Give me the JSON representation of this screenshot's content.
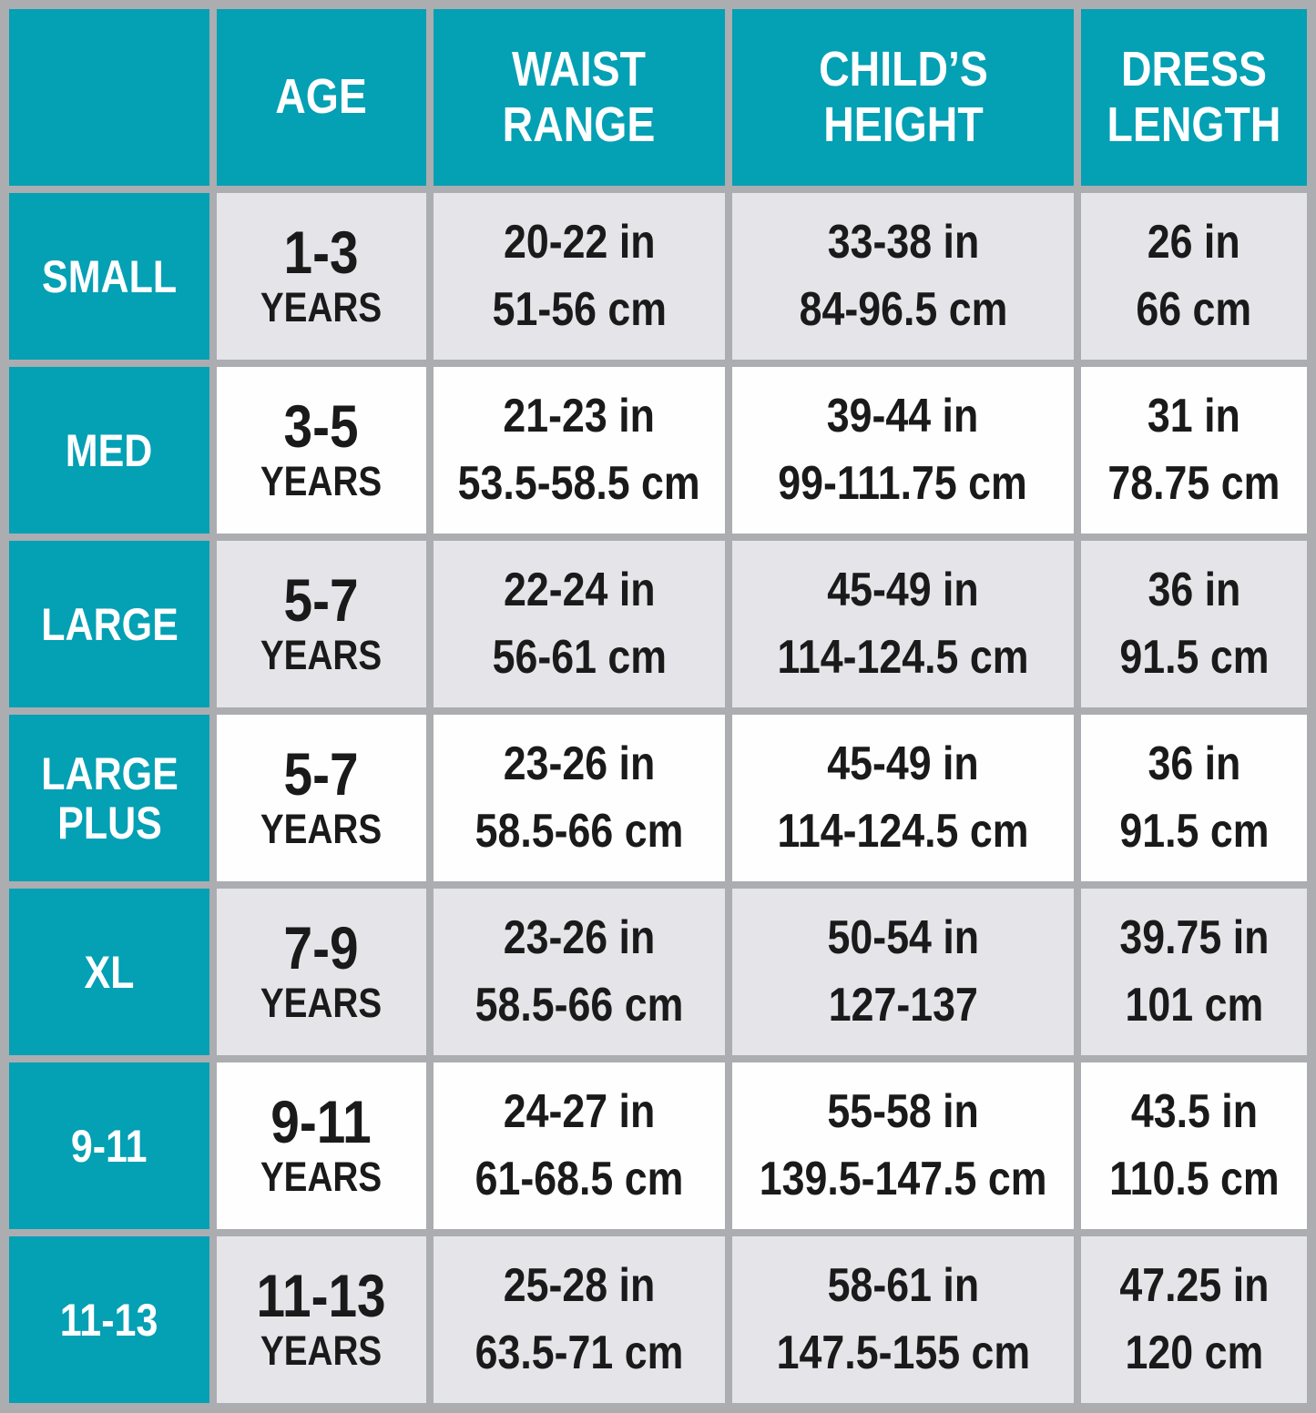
{
  "colors": {
    "teal": "#04A0B4",
    "grid_gray": "#ABADB0",
    "row_gray": "#E4E4E9",
    "row_white": "#FEFEFE",
    "text_dark": "#1A1A1A",
    "text_light": "#FFFFFF"
  },
  "table": {
    "header": {
      "corner": "",
      "age": "AGE",
      "waist": "WAIST\nRANGE",
      "height": "CHILD’S\nHEIGHT",
      "dress": "DRESS\nLENGTH"
    },
    "rows": [
      {
        "label": "SMALL",
        "age": "1-3",
        "age_unit": "YEARS",
        "waist": "20-22 in\n51-56 cm",
        "height": "33-38 in\n84-96.5 cm",
        "dress": "26 in\n66 cm"
      },
      {
        "label": "MED",
        "age": "3-5",
        "age_unit": "YEARS",
        "waist": "21-23 in\n53.5-58.5 cm",
        "height": "39-44 in\n99-111.75 cm",
        "dress": "31 in\n78.75 cm"
      },
      {
        "label": "LARGE",
        "age": "5-7",
        "age_unit": "YEARS",
        "waist": "22-24 in\n56-61 cm",
        "height": "45-49 in\n114-124.5 cm",
        "dress": "36 in\n91.5 cm"
      },
      {
        "label": "LARGE\nPLUS",
        "age": "5-7",
        "age_unit": "YEARS",
        "waist": "23-26 in\n58.5-66 cm",
        "height": "45-49 in\n114-124.5 cm",
        "dress": "36 in\n91.5 cm"
      },
      {
        "label": "XL",
        "age": "7-9",
        "age_unit": "YEARS",
        "waist": "23-26 in\n58.5-66 cm",
        "height": "50-54 in\n127-137",
        "dress": "39.75 in\n101 cm"
      },
      {
        "label": "9-11",
        "age": "9-11",
        "age_unit": "YEARS",
        "waist": "24-27 in\n61-68.5 cm",
        "height": "55-58 in\n139.5-147.5 cm",
        "dress": "43.5 in\n110.5 cm"
      },
      {
        "label": "11-13",
        "age": "11-13",
        "age_unit": "YEARS",
        "waist": "25-28 in\n63.5-71 cm",
        "height": "58-61 in\n147.5-155 cm",
        "dress": "47.25 in\n120 cm"
      }
    ]
  },
  "chart_data": {
    "type": "table",
    "title": "Children's dress size chart",
    "columns": [
      "",
      "AGE",
      "WAIST RANGE",
      "CHILD'S HEIGHT",
      "DRESS LENGTH"
    ],
    "rows": [
      [
        "SMALL",
        "1-3 YEARS",
        "20-22 in / 51-56 cm",
        "33-38 in / 84-96.5 cm",
        "26 in / 66 cm"
      ],
      [
        "MED",
        "3-5 YEARS",
        "21-23 in / 53.5-58.5 cm",
        "39-44 in / 99-111.75 cm",
        "31 in / 78.75 cm"
      ],
      [
        "LARGE",
        "5-7 YEARS",
        "22-24 in / 56-61 cm",
        "45-49 in / 114-124.5 cm",
        "36 in / 91.5 cm"
      ],
      [
        "LARGE PLUS",
        "5-7 YEARS",
        "23-26 in / 58.5-66 cm",
        "45-49 in / 114-124.5 cm",
        "36 in / 91.5 cm"
      ],
      [
        "XL",
        "7-9 YEARS",
        "23-26 in / 58.5-66 cm",
        "50-54 in / 127-137",
        "39.75 in / 101 cm"
      ],
      [
        "9-11",
        "9-11 YEARS",
        "24-27 in / 61-68.5 cm",
        "55-58 in / 139.5-147.5 cm",
        "43.5 in / 110.5 cm"
      ],
      [
        "11-13",
        "11-13 YEARS",
        "25-28 in / 63.5-71 cm",
        "58-61 in / 147.5-155 cm",
        "47.25 in / 120 cm"
      ]
    ],
    "layout": {
      "header_bg": "#04A0B4",
      "row_label_bg": "#04A0B4",
      "alternating_row_bgs": [
        "#E4E4E9",
        "#FEFEFE"
      ],
      "grid_color": "#ABADB0",
      "grid_on": true
    }
  }
}
